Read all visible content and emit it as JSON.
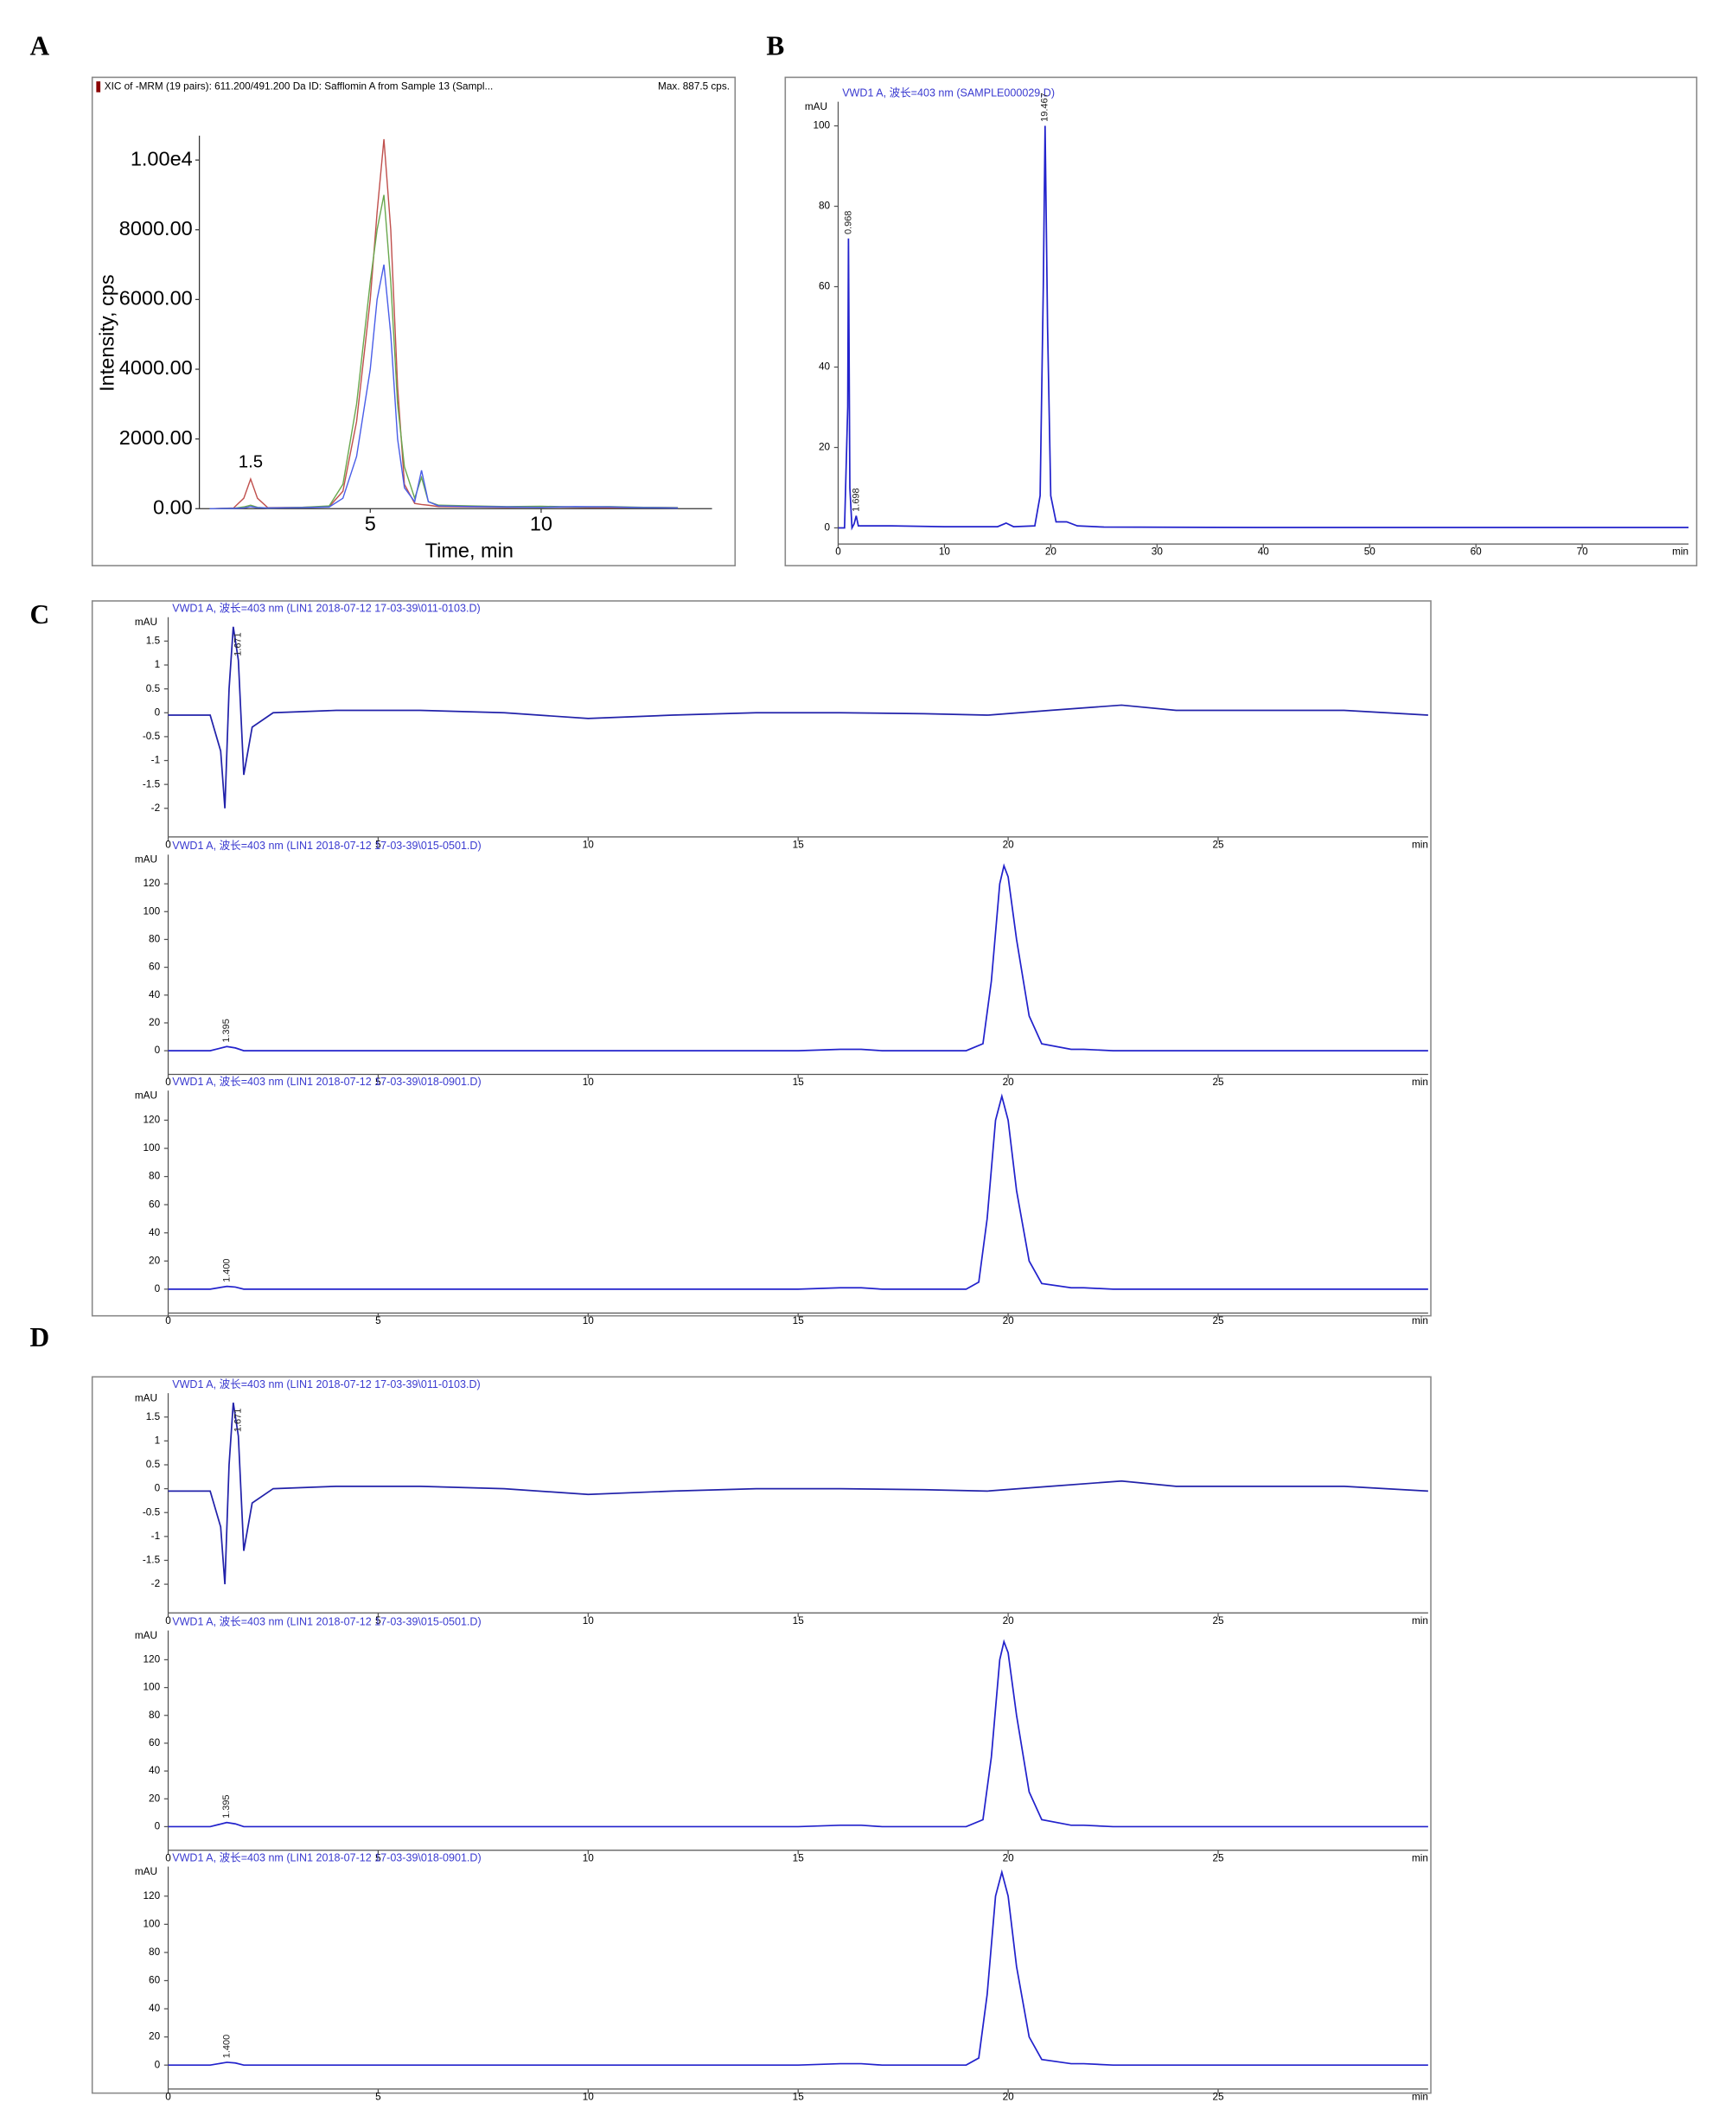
{
  "chart_data": [
    {
      "type": "line",
      "panel": "A",
      "title": "XIC of -MRM (19 pairs): 611.200/491.200 Da ID: Safflomin A from Sample 13 (Sampl...",
      "max_label": "Max. 887.5 cps.",
      "x_label": "Time, min",
      "y_label": "Intensity, cps",
      "x": [
        0.3,
        1.0,
        1.3,
        1.5,
        1.7,
        2.0,
        3.0,
        3.8,
        4.2,
        4.6,
        5.0,
        5.2,
        5.4,
        5.6,
        5.8,
        6.0,
        6.3,
        6.5,
        6.7,
        7.0,
        8.0,
        9.0,
        10.0,
        11.0,
        12.0,
        13.0,
        14.0
      ],
      "series": [
        {
          "color": "#c0504d",
          "values": [
            0,
            20,
            300,
            850,
            300,
            30,
            40,
            60,
            500,
            2500,
            6000,
            8500,
            10600,
            8000,
            3500,
            700,
            150,
            120,
            100,
            60,
            50,
            40,
            50,
            40,
            30,
            40,
            30
          ]
        },
        {
          "color": "#6aa84f",
          "values": [
            0,
            10,
            50,
            100,
            40,
            20,
            40,
            80,
            700,
            3000,
            6500,
            8000,
            9000,
            6500,
            3000,
            1200,
            300,
            900,
            200,
            100,
            80,
            60,
            70,
            50,
            60,
            40,
            30
          ]
        },
        {
          "color": "#4a5ee8",
          "values": [
            0,
            10,
            20,
            60,
            30,
            20,
            30,
            50,
            300,
            1500,
            4000,
            6000,
            7000,
            5000,
            2000,
            600,
            200,
            1100,
            200,
            80,
            60,
            50,
            40,
            60,
            50,
            30,
            20
          ]
        }
      ],
      "xlim": [
        0,
        15
      ],
      "ylim": [
        0,
        10700
      ],
      "xticks": [
        5,
        10
      ],
      "yticks": [
        {
          "value": 0,
          "label": "0.00"
        },
        {
          "value": 2000,
          "label": "2000.00"
        },
        {
          "value": 4000,
          "label": "4000.00"
        },
        {
          "value": 6000,
          "label": "6000.00"
        },
        {
          "value": 8000,
          "label": "8000.00"
        },
        {
          "value": 10000,
          "label": "1.00e4"
        }
      ],
      "peak_labels": [
        1.5
      ]
    },
    {
      "type": "line",
      "panel": "B",
      "title": "VWD1 A, 波长=403 nm (SAMPLE000029.D)",
      "x_label": "min",
      "y_label": "mAU",
      "x": [
        0,
        0.6,
        0.9,
        0.968,
        1.1,
        1.3,
        1.5,
        1.698,
        1.9,
        2.5,
        5,
        10,
        15,
        15.8,
        16.5,
        18.5,
        19.0,
        19.3,
        19.467,
        19.7,
        20.0,
        20.5,
        21.5,
        22.5,
        25,
        40,
        60,
        80
      ],
      "series": [
        {
          "color": "#2222cc",
          "values": [
            0,
            0,
            30,
            72,
            10,
            0,
            1,
            3,
            0.5,
            0.5,
            0.5,
            0.3,
            0.3,
            1.2,
            0.3,
            0.5,
            8,
            60,
            100,
            50,
            8,
            1.5,
            1.5,
            0.5,
            0.2,
            0.1,
            0.1,
            0.1
          ]
        }
      ],
      "xlim": [
        0,
        80
      ],
      "ylim": [
        -4,
        106
      ],
      "xticks": [
        0,
        10,
        20,
        30,
        40,
        50,
        60,
        70
      ],
      "yticks": [
        0,
        20,
        40,
        60,
        80,
        100
      ],
      "peak_labels": [
        0.968,
        1.698,
        19.467
      ]
    },
    {
      "type": "line",
      "panel": "C",
      "title": "VWD1 A, 波长=403 nm (LIN1 2018-07-12 17-03-39\\011-0103.D)",
      "x_label": "min",
      "y_label": "mAU",
      "x": [
        0,
        1,
        1.25,
        1.35,
        1.45,
        1.55,
        1.671,
        1.8,
        2.0,
        2.5,
        4,
        6,
        8,
        10,
        12,
        14,
        16,
        18,
        19.5,
        21,
        22.7,
        24,
        26,
        28,
        30
      ],
      "series": [
        {
          "color": "#2222aa",
          "values": [
            -0.05,
            -0.05,
            -0.8,
            -2.0,
            0.5,
            1.8,
            1.1,
            -1.3,
            -0.3,
            0,
            0.05,
            0.05,
            0,
            -0.12,
            -0.05,
            0.0,
            0.0,
            -0.02,
            -0.05,
            0.05,
            0.16,
            0.05,
            0.05,
            0.05,
            -0.05
          ]
        }
      ],
      "xlim": [
        0,
        30
      ],
      "ylim": [
        -2.6,
        2
      ],
      "xticks": [
        0,
        5,
        10,
        15,
        20,
        25
      ],
      "yticks": [
        -2,
        -1.5,
        -1,
        -0.5,
        0,
        0.5,
        1,
        1.5
      ],
      "peak_labels": [
        1.671
      ]
    },
    {
      "type": "line",
      "title": "VWD1 A, 波长=403 nm (LIN1 2018-07-12 17-03-39\\015-0501.D)",
      "x_label": "min",
      "y_label": "mAU",
      "x": [
        0,
        1.0,
        1.2,
        1.395,
        1.6,
        1.8,
        3,
        10,
        15,
        16,
        16.5,
        17,
        19.0,
        19.4,
        19.6,
        19.8,
        19.9,
        20.0,
        20.2,
        20.5,
        20.8,
        21.5,
        21.8,
        22.5,
        30
      ],
      "series": [
        {
          "color": "#2222cc",
          "values": [
            0,
            0,
            1.5,
            3,
            2,
            0,
            0,
            0,
            0,
            1,
            1,
            0,
            0,
            5,
            50,
            120,
            133,
            125,
            80,
            25,
            5,
            1,
            1,
            0,
            0
          ]
        }
      ],
      "xlim": [
        0,
        30
      ],
      "ylim": [
        -17,
        141
      ],
      "xticks": [
        0,
        5,
        10,
        15,
        20,
        25
      ],
      "yticks": [
        0,
        20,
        40,
        60,
        80,
        100,
        120
      ],
      "peak_labels": [
        1.395
      ]
    },
    {
      "type": "line",
      "title": "VWD1 A, 波长=403 nm (LIN1 2018-07-12 17-03-39\\018-0901.D)",
      "x_label": "min",
      "y_label": "mAU",
      "x": [
        0,
        1.0,
        1.2,
        1.4,
        1.6,
        1.8,
        3,
        10,
        15,
        16,
        16.5,
        17,
        19.0,
        19.3,
        19.5,
        19.7,
        19.85,
        20.0,
        20.2,
        20.5,
        20.8,
        21.5,
        21.8,
        22.5,
        30
      ],
      "series": [
        {
          "color": "#2222cc",
          "values": [
            0,
            0,
            1,
            2,
            1.5,
            0,
            0,
            0,
            0,
            1,
            1,
            0,
            0,
            5,
            50,
            120,
            137,
            120,
            70,
            20,
            4,
            1,
            1,
            0,
            0
          ]
        }
      ],
      "xlim": [
        0,
        30
      ],
      "ylim": [
        -17,
        141
      ],
      "xticks": [
        0,
        5,
        10,
        15,
        20,
        25
      ],
      "yticks": [
        0,
        20,
        40,
        60,
        80,
        100,
        120
      ],
      "peak_labels": [
        {
          "value": 1.4,
          "label": "1.400"
        }
      ]
    },
    {
      "type": "line",
      "panel": "D",
      "title": "VWD1 A, 波长=403 nm (LIN1 2018-07-12 17-03-39\\011-0103.D)",
      "x_label": "min",
      "y_label": "mAU",
      "x": [
        0,
        1,
        1.25,
        1.35,
        1.45,
        1.55,
        1.671,
        1.8,
        2.0,
        2.5,
        4,
        6,
        8,
        10,
        12,
        14,
        16,
        18,
        19.5,
        21,
        22.7,
        24,
        26,
        28,
        30
      ],
      "series": [
        {
          "color": "#2222aa",
          "values": [
            -0.05,
            -0.05,
            -0.8,
            -2.0,
            0.5,
            1.8,
            1.1,
            -1.3,
            -0.3,
            0,
            0.05,
            0.05,
            0,
            -0.12,
            -0.05,
            0.0,
            0.0,
            -0.02,
            -0.05,
            0.05,
            0.16,
            0.05,
            0.05,
            0.05,
            -0.05
          ]
        }
      ],
      "xlim": [
        0,
        30
      ],
      "ylim": [
        -2.6,
        2
      ],
      "xticks": [
        0,
        5,
        10,
        15,
        20,
        25
      ],
      "yticks": [
        -2,
        -1.5,
        -1,
        -0.5,
        0,
        0.5,
        1,
        1.5
      ],
      "peak_labels": [
        1.671
      ]
    },
    {
      "type": "line",
      "title": "VWD1 A, 波长=403 nm (LIN1 2018-07-12 17-03-39\\015-0501.D)",
      "x_label": "min",
      "y_label": "mAU",
      "x": [
        0,
        1.0,
        1.2,
        1.395,
        1.6,
        1.8,
        3,
        10,
        15,
        16,
        16.5,
        17,
        19.0,
        19.4,
        19.6,
        19.8,
        19.9,
        20.0,
        20.2,
        20.5,
        20.8,
        21.5,
        21.8,
        22.5,
        30
      ],
      "series": [
        {
          "color": "#2222cc",
          "values": [
            0,
            0,
            1.5,
            3,
            2,
            0,
            0,
            0,
            0,
            1,
            1,
            0,
            0,
            5,
            50,
            120,
            133,
            125,
            80,
            25,
            5,
            1,
            1,
            0,
            0
          ]
        }
      ],
      "xlim": [
        0,
        30
      ],
      "ylim": [
        -17,
        141
      ],
      "xticks": [
        0,
        5,
        10,
        15,
        20,
        25
      ],
      "yticks": [
        0,
        20,
        40,
        60,
        80,
        100,
        120
      ],
      "peak_labels": [
        1.395
      ]
    },
    {
      "type": "line",
      "title": "VWD1 A, 波长=403 nm (LIN1 2018-07-12 17-03-39\\018-0901.D)",
      "x_label": "min",
      "y_label": "mAU",
      "x": [
        0,
        1.0,
        1.2,
        1.4,
        1.6,
        1.8,
        3,
        10,
        15,
        16,
        16.5,
        17,
        19.0,
        19.3,
        19.5,
        19.7,
        19.85,
        20.0,
        20.2,
        20.5,
        20.8,
        21.5,
        21.8,
        22.5,
        30
      ],
      "series": [
        {
          "color": "#2222cc",
          "values": [
            0,
            0,
            1,
            2,
            1.5,
            0,
            0,
            0,
            0,
            1,
            1,
            0,
            0,
            5,
            50,
            120,
            137,
            120,
            70,
            20,
            4,
            1,
            1,
            0,
            0
          ]
        }
      ],
      "xlim": [
        0,
        30
      ],
      "ylim": [
        -17,
        141
      ],
      "xticks": [
        0,
        5,
        10,
        15,
        20,
        25
      ],
      "yticks": [
        0,
        20,
        40,
        60,
        80,
        100,
        120
      ],
      "peak_labels": [
        {
          "value": 1.4,
          "label": "1.400"
        }
      ]
    }
  ]
}
